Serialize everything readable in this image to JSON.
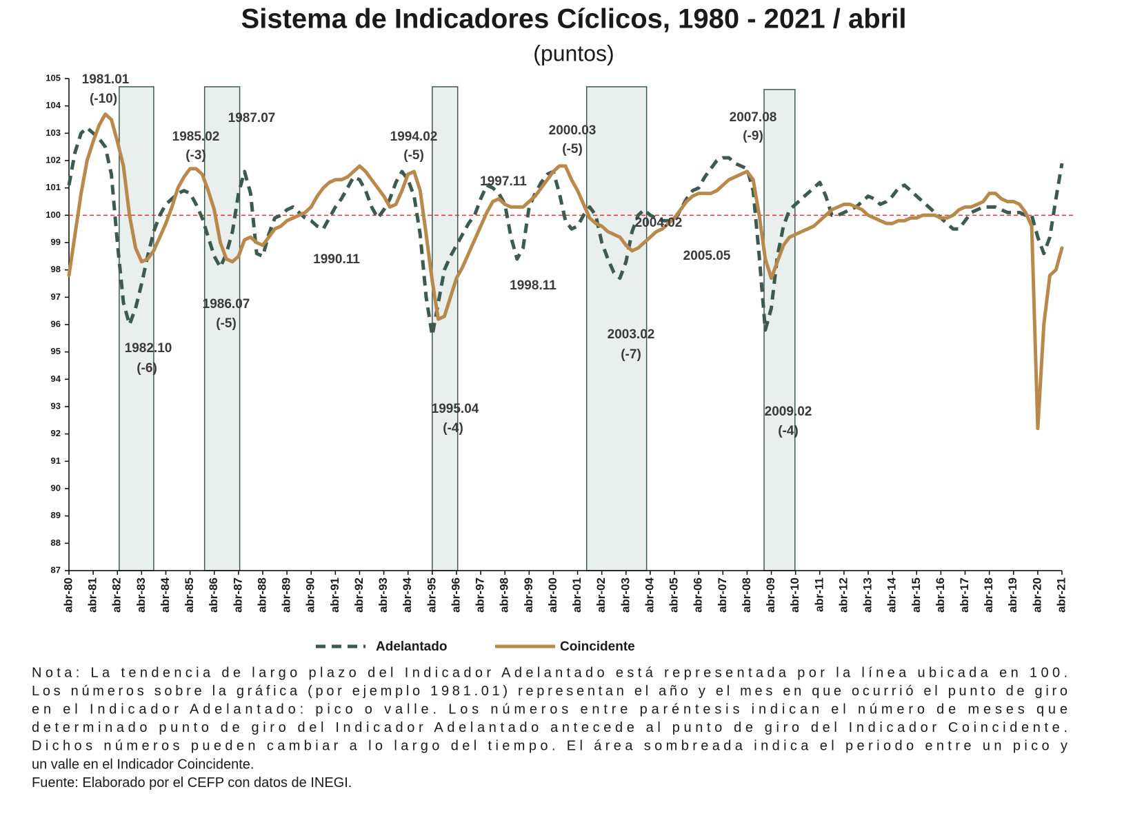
{
  "chart_data": {
    "type": "line",
    "title": "Sistema de Indicadores Cíclicos, 1980 - 2021 / abril",
    "subtitle": "(puntos)",
    "categories": [
      "abr-80",
      null,
      null,
      null,
      "abr-81",
      null,
      null,
      null,
      "abr-82",
      null,
      null,
      null,
      "abr-83",
      null,
      null,
      null,
      "abr-84",
      null,
      null,
      null,
      "abr-85",
      null,
      null,
      null,
      "abr-86",
      null,
      null,
      null,
      "abr-87",
      null,
      null,
      null,
      "abr-88",
      null,
      null,
      null,
      "abr-89",
      null,
      null,
      null,
      "abr-90",
      null,
      null,
      null,
      "abr-91",
      null,
      null,
      null,
      "abr-92",
      null,
      null,
      null,
      "abr-93",
      null,
      null,
      null,
      "abr-94",
      null,
      null,
      null,
      "abr-95",
      null,
      null,
      null,
      "abr-96",
      null,
      null,
      null,
      "abr-97",
      null,
      null,
      null,
      "abr-98",
      null,
      null,
      null,
      "abr-99",
      null,
      null,
      null,
      "abr-00",
      null,
      null,
      null,
      "abr-01",
      null,
      null,
      null,
      "abr-02",
      null,
      null,
      null,
      "abr-03",
      null,
      null,
      null,
      "abr-04",
      null,
      null,
      null,
      "abr-05",
      null,
      null,
      null,
      "abr-06",
      null,
      null,
      null,
      "abr-07",
      null,
      null,
      null,
      "abr-08",
      null,
      null,
      null,
      "abr-09",
      null,
      null,
      null,
      "abr-10",
      null,
      null,
      null,
      "abr-11",
      null,
      null,
      null,
      "abr-12",
      null,
      null,
      null,
      "abr-13",
      null,
      null,
      null,
      "abr-14",
      null,
      null,
      null,
      "abr-15",
      null,
      null,
      null,
      "abr-16",
      null,
      null,
      null,
      "abr-17",
      null,
      null,
      null,
      "abr-18",
      null,
      null,
      null,
      "abr-19",
      null,
      null,
      null,
      "abr-20",
      null,
      null,
      null,
      "abr-21"
    ],
    "series": [
      {
        "name": "Adelantado",
        "color": "#3d5a50",
        "dash": true,
        "values": [
          101.1,
          102.3,
          103.0,
          103.2,
          103.0,
          102.8,
          102.5,
          101.5,
          99.0,
          96.8,
          96.0,
          96.6,
          97.5,
          98.5,
          99.4,
          100.0,
          100.4,
          100.6,
          100.8,
          100.9,
          100.8,
          100.4,
          99.9,
          99.2,
          98.5,
          98.1,
          98.6,
          99.4,
          100.8,
          101.6,
          100.8,
          98.6,
          98.5,
          99.3,
          99.9,
          100.0,
          100.2,
          100.3,
          100.1,
          99.9,
          99.8,
          99.6,
          99.5,
          99.9,
          100.3,
          100.6,
          101.0,
          101.4,
          101.3,
          100.9,
          100.3,
          99.9,
          100.2,
          100.6,
          101.2,
          101.6,
          101.3,
          100.7,
          99.3,
          97.0,
          95.6,
          96.8,
          98.0,
          98.5,
          98.9,
          99.3,
          99.7,
          100.0,
          100.6,
          101.1,
          101.0,
          100.8,
          100.4,
          99.2,
          98.4,
          98.8,
          100.3,
          100.8,
          101.2,
          101.5,
          101.6,
          100.8,
          99.8,
          99.5,
          99.6,
          100.0,
          100.3,
          100.0,
          99.0,
          98.4,
          97.9,
          97.7,
          98.3,
          99.4,
          100.0,
          100.2,
          100.0,
          99.9,
          99.8,
          99.8,
          99.8,
          100.2,
          100.6,
          100.9,
          101.0,
          101.4,
          101.7,
          102.0,
          102.1,
          102.1,
          101.9,
          101.8,
          101.7,
          100.9,
          98.5,
          95.8,
          96.6,
          98.5,
          99.6,
          100.2,
          100.4,
          100.6,
          100.8,
          101.0,
          101.2,
          100.7,
          100.0,
          100.0,
          100.1,
          100.2,
          100.3,
          100.5,
          100.7,
          100.6,
          100.4,
          100.5,
          100.7,
          101.0,
          101.1,
          100.9,
          100.7,
          100.5,
          100.3,
          100.1,
          99.9,
          99.7,
          99.5,
          99.5,
          99.8,
          100.1,
          100.2,
          100.3,
          100.3,
          100.3,
          100.2,
          100.1,
          100.1,
          100.1,
          100.0,
          100.0,
          99.2,
          98.6,
          99.2,
          100.6,
          101.9
        ]
      },
      {
        "name": "Coincidente",
        "color": "#b8894a",
        "dash": false,
        "values": [
          97.8,
          99.3,
          100.8,
          102.0,
          102.7,
          103.3,
          103.7,
          103.5,
          102.7,
          101.8,
          100.0,
          98.8,
          98.3,
          98.4,
          98.7,
          99.2,
          99.7,
          100.3,
          101.0,
          101.4,
          101.7,
          101.7,
          101.5,
          100.9,
          100.2,
          99.0,
          98.4,
          98.3,
          98.5,
          99.1,
          99.2,
          99.0,
          98.9,
          99.2,
          99.5,
          99.6,
          99.8,
          99.9,
          100.0,
          100.1,
          100.3,
          100.7,
          101.0,
          101.2,
          101.3,
          101.3,
          101.4,
          101.6,
          101.8,
          101.6,
          101.3,
          101.0,
          100.7,
          100.3,
          100.4,
          100.9,
          101.5,
          101.6,
          100.9,
          99.3,
          97.6,
          96.2,
          96.3,
          97.0,
          97.7,
          98.1,
          98.6,
          99.1,
          99.6,
          100.1,
          100.5,
          100.6,
          100.4,
          100.3,
          100.3,
          100.3,
          100.5,
          100.7,
          101.0,
          101.3,
          101.6,
          101.8,
          101.8,
          101.3,
          100.9,
          100.4,
          99.9,
          99.7,
          99.6,
          99.4,
          99.3,
          99.2,
          98.9,
          98.7,
          98.8,
          99.0,
          99.2,
          99.4,
          99.5,
          99.7,
          99.9,
          100.2,
          100.5,
          100.7,
          100.8,
          100.8,
          100.8,
          100.9,
          101.1,
          101.3,
          101.4,
          101.5,
          101.6,
          101.3,
          100.0,
          98.4,
          97.7,
          98.3,
          98.9,
          99.2,
          99.3,
          99.4,
          99.5,
          99.6,
          99.8,
          100.0,
          100.2,
          100.3,
          100.4,
          100.4,
          100.3,
          100.2,
          100.0,
          99.9,
          99.8,
          99.7,
          99.7,
          99.8,
          99.8,
          99.9,
          99.9,
          100.0,
          100.0,
          100.0,
          99.9,
          99.9,
          100.0,
          100.2,
          100.3,
          100.3,
          100.4,
          100.5,
          100.8,
          100.8,
          100.6,
          100.5,
          100.5,
          100.4,
          100.1,
          99.6,
          92.2,
          96.0,
          97.8,
          98.0,
          98.8
        ]
      }
    ],
    "ylim": [
      87,
      105
    ],
    "yticks": [
      87,
      88,
      89,
      90,
      91,
      92,
      93,
      94,
      95,
      96,
      97,
      98,
      99,
      100,
      101,
      102,
      103,
      104,
      105
    ],
    "reference_line": 100,
    "reference_color": "#e8312f",
    "shaded_periods": [
      {
        "start": 8.3,
        "end": 14.0,
        "top": 104.7
      },
      {
        "start": 22.4,
        "end": 28.2,
        "top": 104.7
      },
      {
        "start": 60.0,
        "end": 64.2,
        "top": 104.7
      },
      {
        "start": 85.5,
        "end": 95.4,
        "top": 104.7
      },
      {
        "start": 114.8,
        "end": 119.9,
        "top": 104.6
      }
    ],
    "annotations": [
      "1981.01",
      "(-10)",
      "1987.07",
      "1985.02",
      "(-3)",
      "1994.02",
      "(-5)",
      "2000.03",
      "(-5)",
      "2007.08",
      "(-9)",
      "1997.11",
      "2004.02",
      "1990.11",
      "2005.05",
      "1998.11",
      "1986.07",
      "(-5)",
      "1982.10",
      "(-6)",
      "2003.02",
      "(-7)",
      "1995.04",
      "(-4)",
      "2009.02",
      "(-4)"
    ],
    "legend": "bottom",
    "notes": [
      "Nota: La tendencia de largo plazo del Indicador Adelantado está representada por la línea ubicada en 100.",
      "Los números sobre la gráfica (por ejemplo 1981.01) representan el año y el mes en que ocurrió el punto de giro",
      "en el Indicador Adelantado: pico o valle. Los números entre paréntesis indican el número de meses que",
      "determinado punto de giro del Indicador Adelantado antecede al punto de giro del Indicador Coincidente.",
      "Dichos números pueden cambiar a lo largo del tiempo. El área sombreada indica el periodo entre un pico y",
      "un valle en el Indicador Coincidente.",
      "Fuente: Elaborado por el CEFP con datos de INEGI."
    ]
  }
}
